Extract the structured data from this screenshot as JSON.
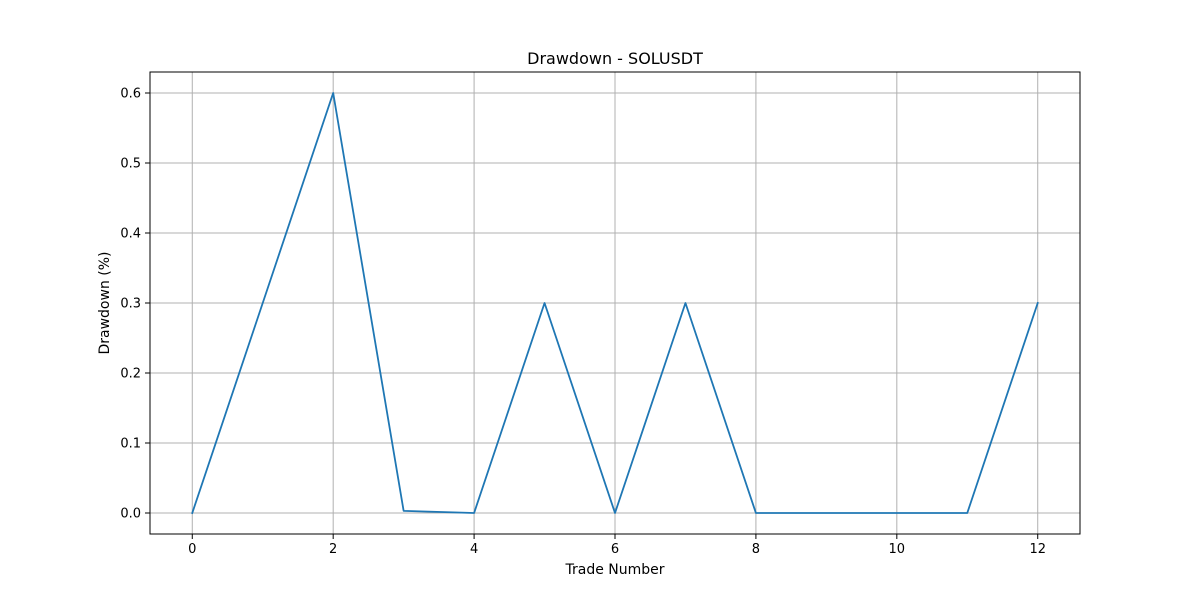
{
  "chart_data": {
    "type": "line",
    "title": "Drawdown - SOLUSDT",
    "xlabel": "Trade Number",
    "ylabel": "Drawdown (%)",
    "xlim": [
      -0.6,
      12.6
    ],
    "ylim": [
      -0.03,
      0.63
    ],
    "xticks": [
      0,
      2,
      4,
      6,
      8,
      10,
      12
    ],
    "yticks": [
      0.0,
      0.1,
      0.2,
      0.3,
      0.4,
      0.5,
      0.6
    ],
    "grid": true,
    "series": [
      {
        "color": "#1f77b4",
        "x": [
          0,
          1,
          2,
          3,
          4,
          5,
          6,
          7,
          8,
          9,
          10,
          11,
          12
        ],
        "y": [
          0.0,
          0.3,
          0.6,
          0.003,
          0.0,
          0.3,
          0.0,
          0.3,
          0.0,
          0.0,
          0.0,
          0.0,
          0.3
        ]
      }
    ]
  }
}
